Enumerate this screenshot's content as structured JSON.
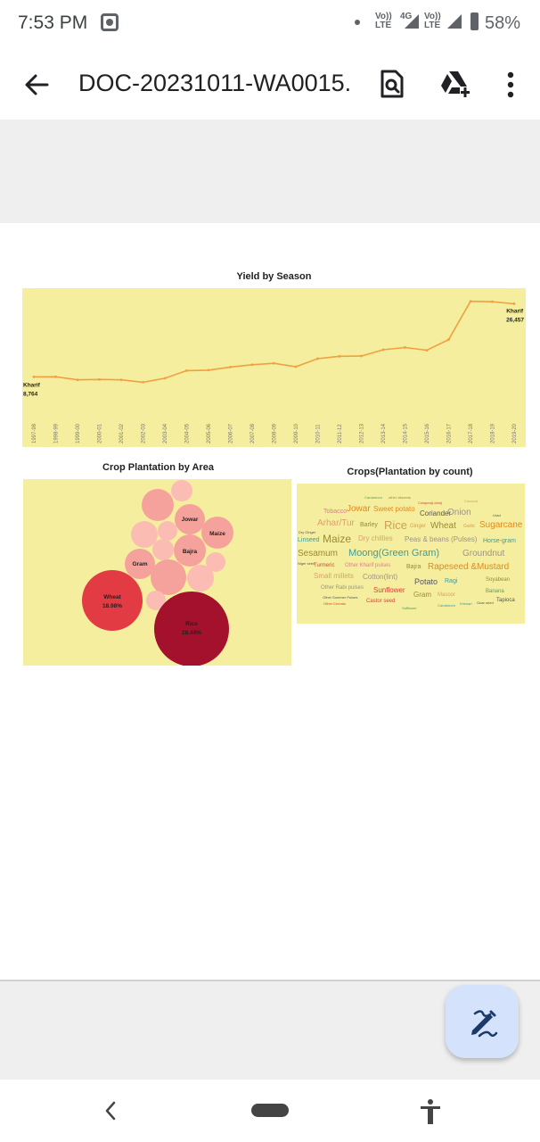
{
  "status_bar": {
    "time": "7:53 PM",
    "signal_1": "Vo)) LTE",
    "network": "4G",
    "signal_2": "Vo)) LTE",
    "battery": "58%"
  },
  "app_bar": {
    "title": "DOC-20231011-WA0015."
  },
  "yield_chart": {
    "title": "Yield by Season",
    "start_label": [
      "Kharif",
      "8,764"
    ],
    "end_label": [
      "Kharif",
      "26,457"
    ],
    "line_color": "#f0a040",
    "background": "#f6ee9f"
  },
  "chart_data": [
    {
      "type": "line",
      "title": "Yield by Season",
      "x": [
        "1997-98",
        "1998-99",
        "1999-00",
        "2000-01",
        "2001-02",
        "2002-03",
        "2003-04",
        "2004-05",
        "2005-06",
        "2006-07",
        "2007-08",
        "2008-09",
        "2009-10",
        "2010-11",
        "2011-12",
        "2012-13",
        "2013-14",
        "2014-15",
        "2015-16",
        "2016-17",
        "2017-18",
        "2018-19",
        "2019-20"
      ],
      "series": [
        {
          "name": "Kharif",
          "values": [
            8764,
            8790,
            8050,
            8150,
            8050,
            7480,
            8420,
            10280,
            10380,
            11150,
            11700,
            12050,
            11220,
            13180,
            13750,
            13800,
            15320,
            15880,
            15200,
            17800,
            27050,
            26950,
            26457
          ]
        }
      ],
      "ylim": [
        0,
        28500
      ]
    },
    {
      "type": "bubble",
      "title": "Crop Plantation by Area",
      "labels": [
        "Rice",
        "Wheat",
        "Jowar",
        "Bajra",
        "Maize",
        "Gram"
      ],
      "values": [
        28.44,
        18.98,
        null,
        null,
        null,
        null
      ],
      "value_labels": [
        "28.44%",
        "18.98%",
        "",
        "",
        "",
        ""
      ]
    },
    {
      "type": "wordcloud",
      "title": "Crops(Plantation by count)",
      "words": [
        "Cardamom",
        "other oilseeds",
        "Coconut",
        "Cowpea(Lobia)",
        "Tobacco",
        "Jowar",
        "Sweet potato",
        "Coriander",
        "Onion",
        "Urad",
        "Arhar/Tur",
        "Barley",
        "Rice",
        "Ginger",
        "Wheat",
        "Garlic",
        "Sugarcane",
        "Dry Ginger",
        "Linseed",
        "Maize",
        "Dry chillies",
        "Peas & beans (Pulses)",
        "Horse-gram",
        "Sesamum",
        "Moong(Green Gram)",
        "Groundnut",
        "Niger seed",
        "Turmeric",
        "Other Kharif pulses",
        "Bajra",
        "Rapeseed &Mustard",
        "Small millets",
        "Cotton(lint)",
        "Potato",
        "Ragi",
        "Soyabean",
        "Other Rabi pulses",
        "Sunflower",
        "Gram",
        "Masoor",
        "Banana",
        "Other Summer Pulses",
        "Other Cereals",
        "Castor seed",
        "Safflower",
        "Cardamom",
        "Khesari",
        "Guar seed",
        "Tapioca"
      ]
    }
  ],
  "bubble_chart": {
    "title": "Crop Plantation by Area",
    "labels": {
      "rice": "Rice",
      "rice_pct": "28.44%",
      "wheat": "Wheat",
      "wheat_pct": "18.98%",
      "jowar": "Jowar",
      "bajra": "Bajra",
      "maize": "Maize",
      "gram": "Gram"
    },
    "colors": {
      "rice": "#a3112c",
      "wheat": "#e23b44",
      "light": "#f6a29c",
      "pale": "#fbbcb4"
    }
  },
  "word_cloud": {
    "title": "Crops(Plantation by count)",
    "colors": {
      "tan": "#c9a24f",
      "orange": "#e08a1e",
      "teal": "#3b9c9a",
      "olive": "#9a8a35",
      "red": "#d2453a",
      "gray": "#9b9481",
      "green": "#52a05a",
      "pink": "#d9828c"
    }
  }
}
